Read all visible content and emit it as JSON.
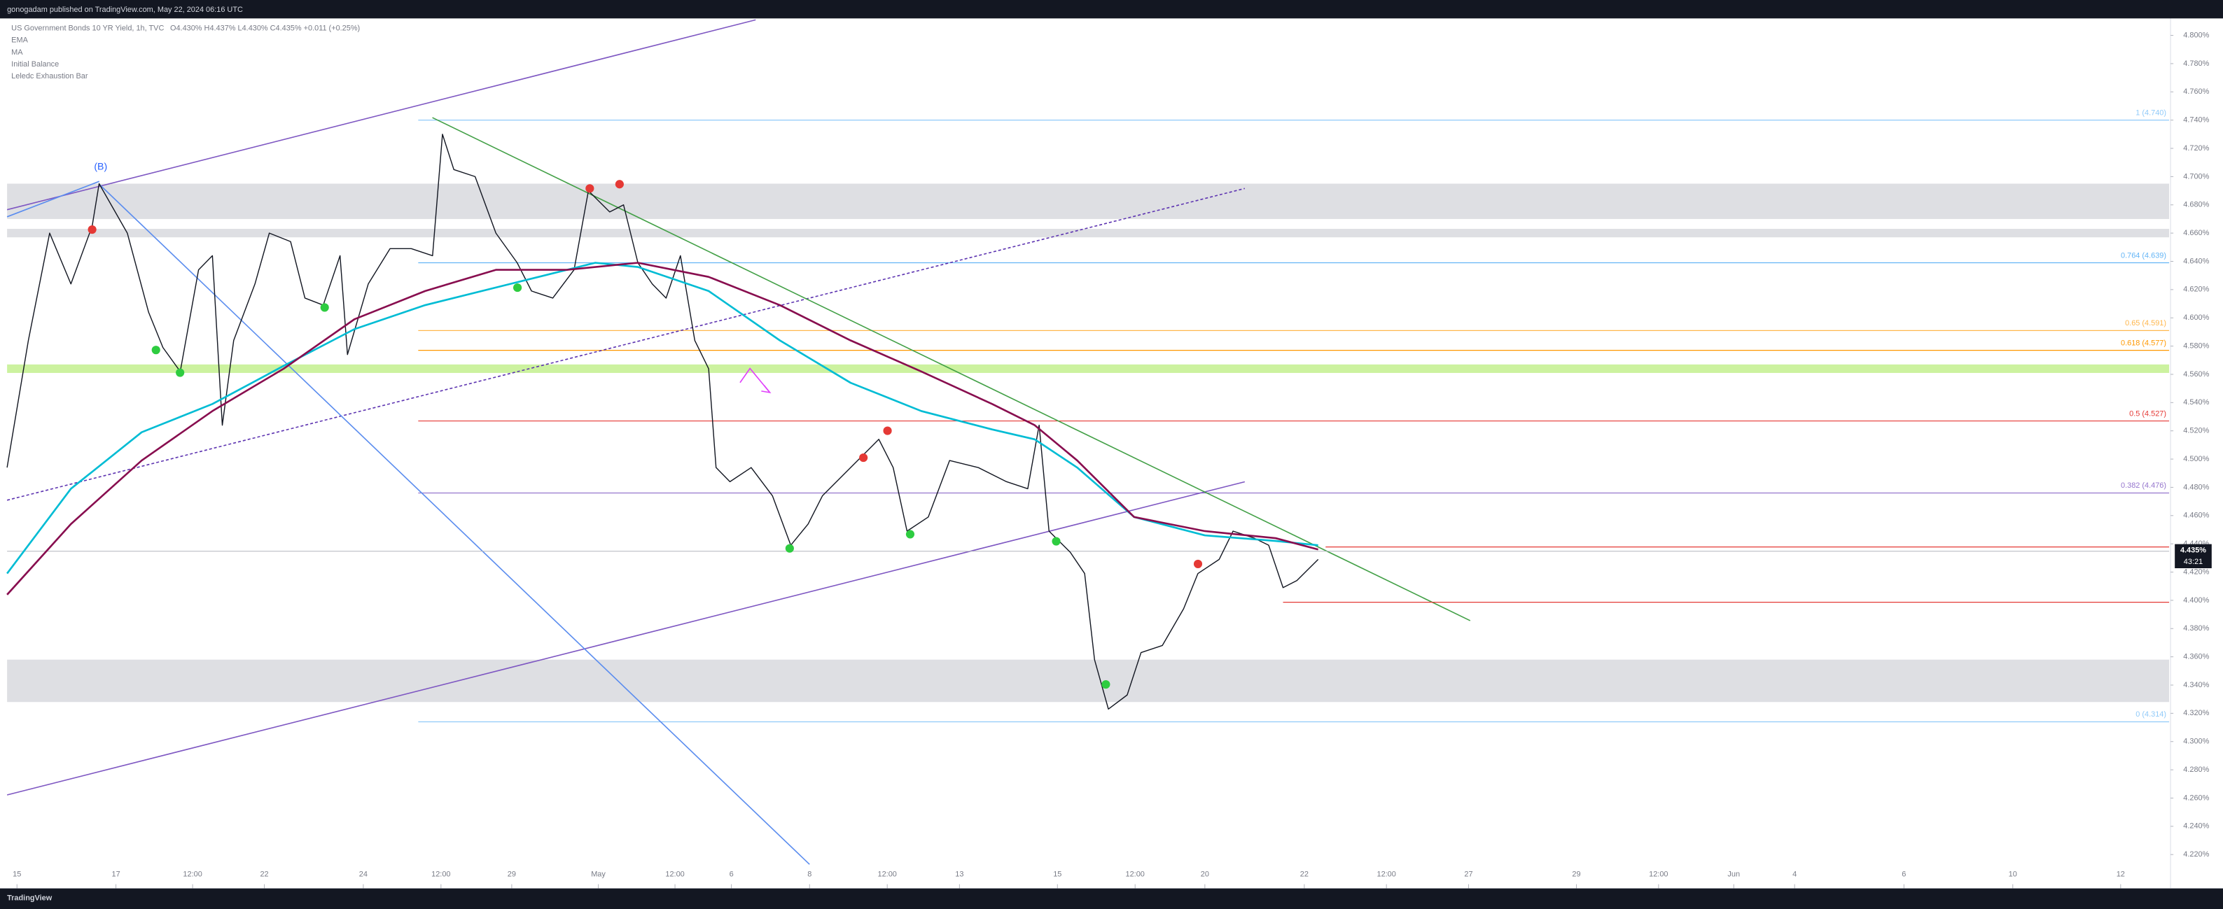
{
  "header": "gonogadam published on TradingView.com, May 22, 2024 06:16 UTC",
  "footer": "TradingView",
  "chart_data": {
    "type": "line",
    "title": "US Government Bonds 10 YR Yield, 1h, TVC",
    "ohlc_text": "O4.430% H4.437% L4.430% C4.435% +0.011 (+0.25%)",
    "indicators": [
      "Initial Balance",
      "Leledc Exhaustion Bar"
    ],
    "annotation": "(B)",
    "last_price": {
      "value": 4.435,
      "label": "4.435%"
    },
    "countdown": "43:21",
    "xlim": [
      -0.2,
      43.5
    ],
    "xticks": [
      {
        "value": 0,
        "label": "15"
      },
      {
        "value": 2,
        "label": "17"
      },
      {
        "value": 3.55,
        "label": "12:00"
      },
      {
        "value": 5,
        "label": "22"
      },
      {
        "value": 7,
        "label": "24"
      },
      {
        "value": 8.57,
        "label": "12:00"
      },
      {
        "value": 10,
        "label": "29"
      },
      {
        "value": 11.75,
        "label": "May"
      },
      {
        "value": 13.3,
        "label": "12:00"
      },
      {
        "value": 14.44,
        "label": "6"
      },
      {
        "value": 16.02,
        "label": "8"
      },
      {
        "value": 17.59,
        "label": "12:00"
      },
      {
        "value": 19.05,
        "label": "13"
      },
      {
        "value": 21.03,
        "label": "15"
      },
      {
        "value": 22.6,
        "label": "12:00"
      },
      {
        "value": 24.01,
        "label": "20"
      },
      {
        "value": 26.02,
        "label": "22"
      },
      {
        "value": 27.68,
        "label": "12:00"
      },
      {
        "value": 29.34,
        "label": "27"
      },
      {
        "value": 31.52,
        "label": "29"
      },
      {
        "value": 33.18,
        "label": "12:00"
      },
      {
        "value": 34.7,
        "label": "Jun"
      },
      {
        "value": 35.93,
        "label": "4"
      },
      {
        "value": 38.14,
        "label": "6"
      },
      {
        "value": 40.34,
        "label": "10"
      },
      {
        "value": 42.52,
        "label": "12"
      }
    ],
    "ylim": [
      4.196,
      4.812
    ],
    "yticks": [
      {
        "value": 4.22,
        "label": "4.220%"
      },
      {
        "value": 4.24,
        "label": "4.240%"
      },
      {
        "value": 4.26,
        "label": "4.260%"
      },
      {
        "value": 4.28,
        "label": "4.280%"
      },
      {
        "value": 4.3,
        "label": "4.300%"
      },
      {
        "value": 4.32,
        "label": "4.320%"
      },
      {
        "value": 4.34,
        "label": "4.340%"
      },
      {
        "value": 4.36,
        "label": "4.360%"
      },
      {
        "value": 4.38,
        "label": "4.380%"
      },
      {
        "value": 4.4,
        "label": "4.400%"
      },
      {
        "value": 4.42,
        "label": "4.420%"
      },
      {
        "value": 4.44,
        "label": "4.440%"
      },
      {
        "value": 4.46,
        "label": "4.460%"
      },
      {
        "value": 4.48,
        "label": "4.480%"
      },
      {
        "value": 4.5,
        "label": "4.500%"
      },
      {
        "value": 4.52,
        "label": "4.520%"
      },
      {
        "value": 4.54,
        "label": "4.540%"
      },
      {
        "value": 4.56,
        "label": "4.560%"
      },
      {
        "value": 4.58,
        "label": "4.580%"
      },
      {
        "value": 4.6,
        "label": "4.600%"
      },
      {
        "value": 4.62,
        "label": "4.620%"
      },
      {
        "value": 4.64,
        "label": "4.640%"
      },
      {
        "value": 4.66,
        "label": "4.660%"
      },
      {
        "value": 4.68,
        "label": "4.680%"
      },
      {
        "value": 4.7,
        "label": "4.700%"
      },
      {
        "value": 4.72,
        "label": "4.720%"
      },
      {
        "value": 4.74,
        "label": "4.740%"
      },
      {
        "value": 4.76,
        "label": "4.760%"
      },
      {
        "value": 4.78,
        "label": "4.780%"
      },
      {
        "value": 4.8,
        "label": "4.800%"
      }
    ],
    "series": [
      {
        "color": "#131722",
        "x": [
          -0.2,
          0.23,
          0.66,
          1.09,
          1.52,
          1.66,
          2.23,
          2.66,
          2.95,
          3.3,
          3.67,
          3.95,
          4.15,
          4.38,
          4.81,
          5.1,
          5.53,
          5.82,
          6.19,
          6.53,
          6.68,
          7.1,
          7.54,
          7.97,
          8.4,
          8.6,
          8.83,
          9.26,
          9.68,
          10.11,
          10.4,
          10.83,
          11.26,
          11.55,
          11.98,
          12.26,
          12.55,
          12.84,
          13.12,
          13.41,
          13.7,
          13.98,
          14.13,
          14.41,
          14.84,
          15.27,
          15.64,
          15.99,
          16.28,
          16.85,
          17.42,
          17.71,
          17.99,
          18.42,
          18.85,
          19.43,
          20.0,
          20.43,
          20.66,
          20.86,
          21.29,
          21.58,
          21.78,
          22.06,
          22.44,
          22.72,
          23.15,
          23.58,
          23.87,
          24.3,
          24.58,
          25.01,
          25.3,
          25.59,
          25.87,
          26.3
        ],
        "values": [
          4.494,
          4.584,
          4.66,
          4.624,
          4.665,
          4.695,
          4.66,
          4.604,
          4.579,
          4.562,
          4.634,
          4.644,
          4.524,
          4.584,
          4.624,
          4.66,
          4.654,
          4.614,
          4.609,
          4.644,
          4.574,
          4.624,
          4.649,
          4.649,
          4.644,
          4.73,
          4.705,
          4.7,
          4.66,
          4.639,
          4.619,
          4.614,
          4.634,
          4.69,
          4.675,
          4.68,
          4.639,
          4.624,
          4.614,
          4.644,
          4.584,
          4.564,
          4.494,
          4.484,
          4.494,
          4.474,
          4.439,
          4.454,
          4.474,
          4.494,
          4.514,
          4.494,
          4.449,
          4.459,
          4.499,
          4.494,
          4.484,
          4.479,
          4.524,
          4.449,
          4.434,
          4.419,
          4.358,
          4.323,
          4.333,
          4.363,
          4.368,
          4.394,
          4.419,
          4.429,
          4.449,
          4.444,
          4.439,
          4.409,
          4.414,
          4.429
        ]
      },
      {
        "name": "EMA",
        "color": "#00bcd4",
        "x": [
          -0.2,
          1.09,
          2.52,
          3.95,
          5.39,
          6.82,
          8.25,
          9.97,
          11.69,
          12.55,
          13.98,
          15.42,
          16.85,
          18.28,
          19.71,
          20.57,
          21.43,
          22.58,
          24.01,
          25.44,
          26.3
        ],
        "values": [
          4.419,
          4.479,
          4.519,
          4.539,
          4.566,
          4.592,
          4.609,
          4.624,
          4.639,
          4.636,
          4.619,
          4.584,
          4.554,
          4.534,
          4.521,
          4.514,
          4.494,
          4.459,
          4.446,
          4.442,
          4.439
        ]
      },
      {
        "name": "MA",
        "color": "#880e4f",
        "x": [
          -0.2,
          1.09,
          2.52,
          3.95,
          5.39,
          6.82,
          8.25,
          9.68,
          11.12,
          12.55,
          13.98,
          15.42,
          16.85,
          18.28,
          19.71,
          20.57,
          21.43,
          22.58,
          24.01,
          25.44,
          26.3
        ],
        "values": [
          4.404,
          4.454,
          4.499,
          4.534,
          4.564,
          4.599,
          4.619,
          4.634,
          4.634,
          4.639,
          4.629,
          4.609,
          4.584,
          4.562,
          4.539,
          4.524,
          4.499,
          4.459,
          4.449,
          4.444,
          4.436
        ]
      }
    ],
    "fib_levels": [
      {
        "label": "1 (4.740)",
        "value": 4.74,
        "color": "#90caf9"
      },
      {
        "label": "0.764 (4.639)",
        "value": 4.639,
        "color": "#64b5f6"
      },
      {
        "label": "0.65 (4.591)",
        "value": 4.591,
        "color": "#ffb74d"
      },
      {
        "label": "0.618 (4.577)",
        "value": 4.577,
        "color": "#ff9800"
      },
      {
        "label": "0.5 (4.527)",
        "value": 4.527,
        "color": "#e53935"
      },
      {
        "label": "0.382 (4.476)",
        "value": 4.476,
        "color": "#9575cd"
      },
      {
        "label": "0 (4.314)",
        "value": 4.314,
        "color": "#90caf9"
      }
    ],
    "zones": [
      {
        "from": 4.67,
        "to": 4.695,
        "color": "#dedfe3"
      },
      {
        "from": 4.657,
        "to": 4.663,
        "color": "#dedfe3"
      },
      {
        "from": 4.561,
        "to": 4.567,
        "color": "#ccf29f"
      },
      {
        "from": 4.328,
        "to": 4.358,
        "color": "#dedfe3"
      }
    ]
  }
}
